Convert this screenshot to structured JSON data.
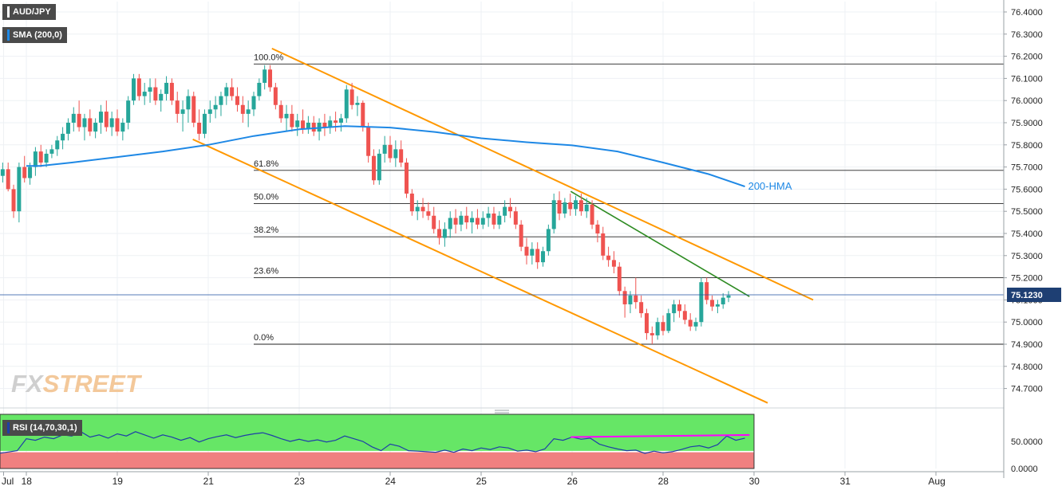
{
  "symbol": "AUD/JPY",
  "indicator_label": "SMA (200,0)",
  "rsi_label": "RSI (14,70,30,1)",
  "brand": {
    "fx": "FX",
    "street": "STREET"
  },
  "price_tag": "75.1230",
  "colors": {
    "up": "#26a69a",
    "down": "#ef5350",
    "hma": "#1e88e5",
    "channel": "#ff9800",
    "trend": "#2e8b22",
    "rsi_line": "#1e3ea8",
    "rsi_divergence": "#ff00ff",
    "rsi_overbought": "#66e666",
    "rsi_oversold": "#f08080"
  },
  "chart_data": {
    "type": "candlestick",
    "title": "AUD/JPY",
    "ylim": [
      74.62,
      76.45
    ],
    "y_ticks": [
      "76.4000",
      "76.3000",
      "76.2000",
      "76.1000",
      "76.0000",
      "75.9000",
      "75.8000",
      "75.7000",
      "75.6000",
      "75.5000",
      "75.4000",
      "75.3000",
      "75.2000",
      "75.1000",
      "75.0000",
      "74.9000",
      "74.8000",
      "74.7000"
    ],
    "x_ticks": [
      "Jul",
      "18",
      "19",
      "21",
      "23",
      "24",
      "25",
      "26",
      "28",
      "30",
      "31",
      "Aug"
    ],
    "last_price": 75.123,
    "fibonacci": [
      {
        "label": "100.0%",
        "value": 76.165
      },
      {
        "label": "61.8%",
        "value": 75.685
      },
      {
        "label": "50.0%",
        "value": 75.535
      },
      {
        "label": "38.2%",
        "value": 75.385
      },
      {
        "label": "23.6%",
        "value": 75.2
      },
      {
        "label": "0.0%",
        "value": 74.9
      }
    ],
    "hma_label": "200-HMA",
    "hma": [
      {
        "t": 0,
        "v": 75.705
      },
      {
        "t": 0.15,
        "v": 75.705
      },
      {
        "t": 0.5,
        "v": 75.72
      },
      {
        "t": 1.0,
        "v": 75.745
      },
      {
        "t": 1.5,
        "v": 75.77
      },
      {
        "t": 2.0,
        "v": 75.8
      },
      {
        "t": 2.5,
        "v": 75.84
      },
      {
        "t": 3.0,
        "v": 75.87
      },
      {
        "t": 3.5,
        "v": 75.885
      },
      {
        "t": 4.0,
        "v": 75.878
      },
      {
        "t": 4.5,
        "v": 75.858
      },
      {
        "t": 5.0,
        "v": 75.83
      },
      {
        "t": 5.5,
        "v": 75.812
      },
      {
        "t": 6.0,
        "v": 75.798
      },
      {
        "t": 6.5,
        "v": 75.77
      },
      {
        "t": 7.0,
        "v": 75.72
      },
      {
        "t": 7.5,
        "v": 75.668
      },
      {
        "t": 7.9,
        "v": 75.612
      }
    ],
    "channel_upper": [
      {
        "t": 2.7,
        "v": 76.235
      },
      {
        "t": 8.65,
        "v": 75.1
      }
    ],
    "channel_lower": [
      {
        "t": 1.83,
        "v": 75.825
      },
      {
        "t": 8.15,
        "v": 74.635
      }
    ],
    "trend_line": [
      {
        "t": 5.985,
        "v": 75.59
      },
      {
        "t": 7.95,
        "v": 75.115
      }
    ],
    "candles": [
      [
        -0.5,
        75.92,
        75.96,
        75.84,
        75.86
      ],
      [
        -0.44,
        75.86,
        75.88,
        75.78,
        75.8
      ],
      [
        -0.38,
        75.8,
        75.83,
        75.72,
        75.73
      ],
      [
        -0.32,
        75.73,
        75.76,
        75.64,
        75.66
      ],
      [
        -0.26,
        75.66,
        75.72,
        75.63,
        75.69
      ],
      [
        -0.2,
        75.69,
        75.72,
        75.59,
        75.6
      ],
      [
        -0.14,
        75.6,
        75.62,
        75.47,
        75.5
      ],
      [
        -0.08,
        75.5,
        75.72,
        75.45,
        75.7
      ],
      [
        -0.02,
        75.7,
        75.75,
        75.63,
        75.65
      ],
      [
        0.04,
        75.65,
        75.72,
        75.62,
        75.7
      ],
      [
        0.1,
        75.7,
        75.79,
        75.66,
        75.77
      ],
      [
        0.16,
        75.77,
        75.8,
        75.7,
        75.72
      ],
      [
        0.22,
        75.72,
        75.78,
        75.7,
        75.76
      ],
      [
        0.28,
        75.76,
        75.8,
        75.74,
        75.78
      ],
      [
        0.34,
        75.78,
        75.84,
        75.75,
        75.82
      ],
      [
        0.4,
        75.82,
        75.88,
        75.78,
        75.85
      ],
      [
        0.46,
        75.85,
        75.92,
        75.82,
        75.9
      ],
      [
        0.52,
        75.9,
        75.97,
        75.86,
        75.94
      ],
      [
        0.58,
        75.94,
        76.0,
        75.86,
        75.88
      ],
      [
        0.64,
        75.88,
        75.94,
        75.82,
        75.92
      ],
      [
        0.7,
        75.92,
        75.96,
        75.84,
        75.86
      ],
      [
        0.76,
        75.86,
        75.92,
        75.83,
        75.9
      ],
      [
        0.82,
        75.9,
        75.98,
        75.85,
        75.95
      ],
      [
        0.88,
        75.95,
        76.0,
        75.86,
        75.88
      ],
      [
        0.94,
        75.88,
        75.95,
        75.84,
        75.92
      ],
      [
        1.0,
        75.92,
        75.96,
        75.84,
        75.86
      ],
      [
        1.06,
        75.86,
        75.92,
        75.82,
        75.9
      ],
      [
        1.12,
        75.9,
        76.02,
        75.87,
        76.0
      ],
      [
        1.18,
        76.0,
        76.12,
        75.98,
        76.1
      ],
      [
        1.24,
        76.1,
        76.12,
        76.0,
        76.02
      ],
      [
        1.3,
        76.02,
        76.08,
        75.98,
        76.04
      ],
      [
        1.36,
        76.04,
        76.1,
        75.99,
        76.06
      ],
      [
        1.42,
        76.06,
        76.1,
        75.98,
        76.0
      ],
      [
        1.48,
        76.0,
        76.05,
        75.95,
        76.03
      ],
      [
        1.54,
        76.03,
        76.11,
        76.0,
        76.08
      ],
      [
        1.6,
        76.08,
        76.1,
        75.98,
        76.0
      ],
      [
        1.66,
        76.0,
        76.04,
        75.9,
        75.94
      ],
      [
        1.72,
        75.94,
        76.0,
        75.86,
        75.96
      ],
      [
        1.78,
        75.96,
        76.05,
        75.9,
        76.02
      ],
      [
        1.84,
        76.02,
        76.04,
        75.88,
        75.9
      ],
      [
        1.9,
        75.9,
        75.96,
        75.82,
        75.85
      ],
      [
        1.96,
        75.85,
        75.96,
        75.83,
        75.94
      ],
      [
        2.02,
        75.94,
        76.0,
        75.9,
        75.96
      ],
      [
        2.08,
        75.96,
        76.02,
        75.92,
        75.98
      ],
      [
        2.14,
        75.98,
        76.04,
        75.93,
        76.02
      ],
      [
        2.2,
        76.02,
        76.08,
        75.98,
        76.06
      ],
      [
        2.26,
        76.06,
        76.1,
        76.0,
        76.02
      ],
      [
        2.32,
        76.02,
        76.06,
        75.95,
        75.98
      ],
      [
        2.38,
        75.98,
        76.02,
        75.9,
        75.94
      ],
      [
        2.44,
        75.94,
        76.0,
        75.88,
        75.96
      ],
      [
        2.5,
        75.96,
        76.04,
        75.93,
        76.02
      ],
      [
        2.56,
        76.02,
        76.1,
        76.0,
        76.08
      ],
      [
        2.62,
        76.08,
        76.16,
        76.05,
        76.14
      ],
      [
        2.68,
        76.14,
        76.16,
        76.04,
        76.06
      ],
      [
        2.74,
        76.06,
        76.08,
        75.96,
        75.98
      ],
      [
        2.8,
        75.98,
        76.0,
        75.9,
        75.92
      ],
      [
        2.86,
        75.92,
        75.98,
        75.86,
        75.94
      ],
      [
        2.92,
        75.94,
        75.98,
        75.86,
        75.88
      ],
      [
        2.98,
        75.88,
        75.94,
        75.84,
        75.91
      ],
      [
        3.04,
        75.91,
        75.96,
        75.85,
        75.87
      ],
      [
        3.1,
        75.87,
        75.93,
        75.85,
        75.9
      ],
      [
        3.16,
        75.9,
        75.93,
        75.84,
        75.86
      ],
      [
        3.22,
        75.86,
        75.92,
        75.82,
        75.9
      ],
      [
        3.28,
        75.9,
        75.94,
        75.84,
        75.88
      ],
      [
        3.34,
        75.88,
        75.93,
        75.85,
        75.91
      ],
      [
        3.4,
        75.91,
        75.95,
        75.86,
        75.9
      ],
      [
        3.46,
        75.9,
        75.94,
        75.86,
        75.92
      ],
      [
        3.52,
        75.92,
        76.07,
        75.9,
        76.05
      ],
      [
        3.58,
        76.05,
        76.08,
        75.96,
        75.98
      ],
      [
        3.64,
        75.98,
        76.02,
        75.93,
        75.99
      ],
      [
        3.7,
        75.99,
        76.0,
        75.86,
        75.88
      ],
      [
        3.76,
        75.88,
        75.9,
        75.72,
        75.75
      ],
      [
        3.82,
        75.75,
        75.78,
        75.62,
        75.64
      ],
      [
        3.88,
        75.64,
        75.78,
        75.62,
        75.76
      ],
      [
        3.94,
        75.76,
        75.84,
        75.72,
        75.8
      ],
      [
        4.0,
        75.8,
        75.84,
        75.72,
        75.74
      ],
      [
        4.06,
        75.74,
        75.82,
        75.7,
        75.78
      ],
      [
        4.12,
        75.78,
        75.82,
        75.7,
        75.72
      ],
      [
        4.18,
        75.72,
        75.74,
        75.56,
        75.58
      ],
      [
        4.24,
        75.58,
        75.6,
        75.48,
        75.5
      ],
      [
        4.3,
        75.5,
        75.55,
        75.46,
        75.52
      ],
      [
        4.36,
        75.52,
        75.56,
        75.47,
        75.5
      ],
      [
        4.42,
        75.5,
        75.54,
        75.46,
        75.48
      ],
      [
        4.48,
        75.48,
        75.52,
        75.4,
        75.42
      ],
      [
        4.54,
        75.42,
        75.46,
        75.35,
        75.38
      ],
      [
        4.6,
        75.38,
        75.45,
        75.34,
        75.42
      ],
      [
        4.66,
        75.42,
        75.5,
        75.38,
        75.47
      ],
      [
        4.72,
        75.47,
        75.51,
        75.4,
        75.44
      ],
      [
        4.78,
        75.44,
        75.5,
        75.41,
        75.48
      ],
      [
        4.84,
        75.48,
        75.52,
        75.42,
        75.45
      ],
      [
        4.9,
        75.45,
        75.5,
        75.4,
        75.47
      ],
      [
        4.96,
        75.47,
        75.51,
        75.42,
        75.44
      ],
      [
        5.02,
        75.44,
        75.5,
        75.42,
        75.47
      ],
      [
        5.08,
        75.47,
        75.52,
        75.43,
        75.49
      ],
      [
        5.14,
        75.49,
        75.52,
        75.42,
        75.44
      ],
      [
        5.2,
        75.44,
        75.5,
        75.42,
        75.48
      ],
      [
        5.26,
        75.48,
        75.55,
        75.45,
        75.52
      ],
      [
        5.32,
        75.52,
        75.56,
        75.47,
        75.5
      ],
      [
        5.38,
        75.5,
        75.52,
        75.42,
        75.44
      ],
      [
        5.44,
        75.44,
        75.46,
        75.32,
        75.34
      ],
      [
        5.5,
        75.34,
        75.38,
        75.26,
        75.3
      ],
      [
        5.56,
        75.3,
        75.36,
        75.26,
        75.33
      ],
      [
        5.62,
        75.33,
        75.36,
        75.24,
        75.27
      ],
      [
        5.68,
        75.27,
        75.34,
        75.25,
        75.32
      ],
      [
        5.74,
        75.32,
        75.44,
        75.3,
        75.42
      ],
      [
        5.8,
        75.42,
        75.58,
        75.4,
        75.55
      ],
      [
        5.86,
        75.55,
        75.59,
        75.46,
        75.49
      ],
      [
        5.92,
        75.49,
        75.56,
        75.47,
        75.54
      ],
      [
        5.98,
        75.54,
        75.58,
        75.48,
        75.51
      ],
      [
        6.04,
        75.51,
        75.57,
        75.48,
        75.55
      ],
      [
        6.1,
        75.55,
        75.58,
        75.48,
        75.5
      ],
      [
        6.16,
        75.5,
        75.56,
        75.47,
        75.53
      ],
      [
        6.22,
        75.53,
        75.55,
        75.42,
        75.44
      ],
      [
        6.28,
        75.44,
        75.46,
        75.36,
        75.4
      ],
      [
        6.34,
        75.4,
        75.43,
        75.28,
        75.3
      ],
      [
        6.4,
        75.3,
        75.34,
        75.25,
        75.28
      ],
      [
        6.46,
        75.28,
        75.32,
        75.22,
        75.25
      ],
      [
        6.52,
        75.25,
        75.27,
        75.12,
        75.14
      ],
      [
        6.58,
        75.14,
        75.16,
        75.02,
        75.08
      ],
      [
        6.64,
        75.08,
        75.14,
        75.04,
        75.12
      ],
      [
        6.7,
        75.12,
        75.2,
        75.06,
        75.09
      ],
      [
        6.76,
        75.09,
        75.12,
        75.02,
        75.04
      ],
      [
        6.82,
        75.04,
        75.06,
        74.92,
        74.95
      ],
      [
        6.88,
        74.95,
        74.98,
        74.9,
        74.94
      ],
      [
        6.94,
        74.94,
        75.02,
        74.92,
        75.0
      ],
      [
        7.0,
        75.0,
        75.03,
        74.94,
        74.96
      ],
      [
        7.06,
        74.96,
        75.06,
        74.95,
        75.04
      ],
      [
        7.12,
        75.04,
        75.1,
        75.0,
        75.08
      ],
      [
        7.18,
        75.08,
        75.1,
        75.02,
        75.05
      ],
      [
        7.24,
        75.05,
        75.08,
        74.99,
        75.01
      ],
      [
        7.3,
        75.01,
        75.04,
        74.96,
        74.98
      ],
      [
        7.36,
        74.98,
        75.02,
        74.96,
        75.0
      ],
      [
        7.42,
        75.0,
        75.2,
        74.98,
        75.18
      ],
      [
        7.48,
        75.18,
        75.2,
        75.08,
        75.1
      ],
      [
        7.54,
        75.1,
        75.12,
        75.05,
        75.07
      ],
      [
        7.6,
        75.07,
        75.1,
        75.04,
        75.08
      ],
      [
        7.66,
        75.08,
        75.13,
        75.06,
        75.11
      ],
      [
        7.72,
        75.11,
        75.14,
        75.09,
        75.12
      ]
    ],
    "rsi": {
      "label": "RSI (14,70,30,1)",
      "ylim": [
        0,
        100
      ],
      "overbought": 70,
      "oversold": 30,
      "y_ticks": [
        "50.0000",
        "0.0000"
      ],
      "values": [
        [
          -0.5,
          35
        ],
        [
          -0.3,
          28
        ],
        [
          -0.1,
          33
        ],
        [
          0.0,
          55
        ],
        [
          0.1,
          52
        ],
        [
          0.2,
          58
        ],
        [
          0.3,
          55
        ],
        [
          0.4,
          62
        ],
        [
          0.5,
          60
        ],
        [
          0.6,
          68
        ],
        [
          0.7,
          58
        ],
        [
          0.8,
          62
        ],
        [
          0.9,
          56
        ],
        [
          1.0,
          64
        ],
        [
          1.1,
          60
        ],
        [
          1.2,
          68
        ],
        [
          1.3,
          62
        ],
        [
          1.4,
          56
        ],
        [
          1.5,
          62
        ],
        [
          1.6,
          58
        ],
        [
          1.7,
          52
        ],
        [
          1.8,
          57
        ],
        [
          1.9,
          49
        ],
        [
          2.0,
          55
        ],
        [
          2.1,
          59
        ],
        [
          2.2,
          62
        ],
        [
          2.3,
          57
        ],
        [
          2.4,
          61
        ],
        [
          2.5,
          64
        ],
        [
          2.6,
          66
        ],
        [
          2.7,
          61
        ],
        [
          2.8,
          55
        ],
        [
          2.9,
          50
        ],
        [
          3.0,
          54
        ],
        [
          3.1,
          50
        ],
        [
          3.2,
          53
        ],
        [
          3.3,
          49
        ],
        [
          3.4,
          52
        ],
        [
          3.5,
          60
        ],
        [
          3.6,
          55
        ],
        [
          3.7,
          50
        ],
        [
          3.8,
          40
        ],
        [
          3.9,
          33
        ],
        [
          4.0,
          45
        ],
        [
          4.1,
          41
        ],
        [
          4.2,
          33
        ],
        [
          4.3,
          32
        ],
        [
          4.4,
          31
        ],
        [
          4.5,
          30
        ],
        [
          4.6,
          34
        ],
        [
          4.7,
          30
        ],
        [
          4.8,
          36
        ],
        [
          4.9,
          33
        ],
        [
          5.0,
          38
        ],
        [
          5.1,
          35
        ],
        [
          5.2,
          40
        ],
        [
          5.3,
          38
        ],
        [
          5.4,
          32
        ],
        [
          5.5,
          34
        ],
        [
          5.6,
          31
        ],
        [
          5.7,
          36
        ],
        [
          5.8,
          55
        ],
        [
          5.9,
          52
        ],
        [
          6.0,
          58
        ],
        [
          6.1,
          54
        ],
        [
          6.2,
          56
        ],
        [
          6.3,
          45
        ],
        [
          6.4,
          40
        ],
        [
          6.5,
          36
        ],
        [
          6.6,
          33
        ],
        [
          6.7,
          34
        ],
        [
          6.8,
          28
        ],
        [
          6.9,
          32
        ],
        [
          7.0,
          29
        ],
        [
          7.1,
          31
        ],
        [
          7.2,
          35
        ],
        [
          7.3,
          40
        ],
        [
          7.4,
          42
        ],
        [
          7.5,
          38
        ],
        [
          7.6,
          44
        ],
        [
          7.7,
          60
        ],
        [
          7.8,
          52
        ],
        [
          7.9,
          56
        ]
      ],
      "divergence": [
        {
          "t": 5.985,
          "v": 58
        },
        {
          "t": 7.95,
          "v": 62
        }
      ]
    }
  }
}
